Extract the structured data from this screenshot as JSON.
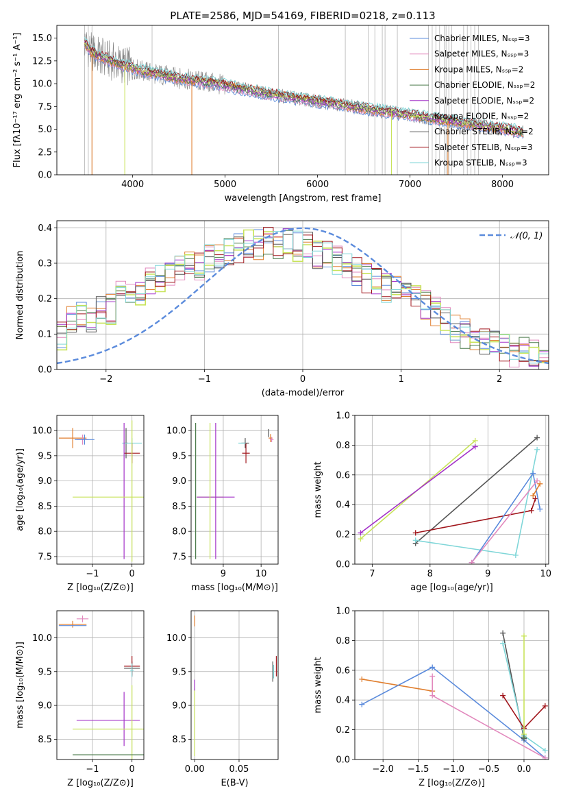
{
  "colors": {
    "chabrier_miles": "#5b8bdc",
    "salpeter_miles": "#e289bd",
    "kroupa_miles": "#e07f2f",
    "chabrier_elodie": "#4a7a4a",
    "salpeter_elodie": "#a330c8",
    "kroupa_elodie": "#c8e35a",
    "chabrier_stelib": "#555555",
    "salpeter_stelib": "#a0151b",
    "kroupa_stelib": "#7fd6d8",
    "spectrum": "#7f7f7f",
    "sky_lines": "#bbbbbb",
    "grid": "#b0b0b0"
  },
  "chart_data": [
    {
      "id": "spectrum",
      "type": "line",
      "title": "PLATE=2586, MJD=54169, FIBERID=0218, z=0.113",
      "xlabel": "wavelength [Angstrom, rest frame]",
      "ylabel": "Flux [fλ10⁻¹⁷ erg cm⁻² s⁻¹ A⁻¹]",
      "xlim": [
        3180,
        8500
      ],
      "ylim": [
        0,
        16.4
      ],
      "xticks": [
        4000,
        5000,
        6000,
        7000,
        8000
      ],
      "yticks": [
        0.0,
        2.5,
        5.0,
        7.5,
        10.0,
        12.5,
        15.0
      ],
      "grid": false,
      "legend_position": "top-right",
      "legend": [
        "Chabrier MILES, Nₛₛₚ=3",
        "Salpeter MILES, Nₛₛₚ=3",
        "Kroupa MILES, Nₛₛₚ=2",
        "Chabrier ELODIE, Nₛₛₚ=2",
        "Salpeter ELODIE, Nₛₛₚ=2",
        "Kroupa ELODIE, Nₛₛₚ=2",
        "Chabrier STELIB, Nₛₛₚ=2",
        "Salpeter STELIB, Nₛₛₚ=3",
        "Kroupa STELIB, Nₛₛₚ=3"
      ],
      "legend_keys": [
        "chabrier_miles",
        "salpeter_miles",
        "kroupa_miles",
        "chabrier_elodie",
        "salpeter_elodie",
        "kroupa_elodie",
        "chabrier_stelib",
        "salpeter_stelib",
        "kroupa_stelib"
      ],
      "data_continuum": {
        "x": [
          3480,
          3550,
          3650,
          3750,
          3850,
          3950,
          4100,
          4300,
          4500,
          4700,
          4900,
          5100,
          5300,
          5500,
          5700,
          5900,
          6100,
          6300,
          6500,
          6700,
          6900,
          7100,
          7300,
          7500,
          7700,
          7900,
          8100,
          8230
        ],
        "y": [
          14.5,
          13.5,
          13.0,
          12.6,
          12.2,
          11.9,
          11.4,
          11.0,
          10.6,
          10.3,
          10.0,
          9.6,
          9.2,
          8.8,
          8.5,
          8.2,
          7.9,
          7.6,
          7.3,
          7.0,
          6.7,
          6.4,
          6.1,
          5.8,
          5.5,
          5.2,
          4.9,
          4.6
        ]
      },
      "sky_lines_x": [
        3480,
        3520,
        3560,
        4210,
        5577,
        6300,
        6548,
        6620,
        6700,
        6730,
        6863,
        7200,
        7240,
        7280,
        7320,
        7370,
        7390,
        7420,
        7450,
        7580,
        7620,
        7660,
        7700,
        7740
      ],
      "model_dips": [
        {
          "series": "kroupa_miles",
          "x": 3560,
          "to": 0
        },
        {
          "series": "kroupa_elodie",
          "x": 3915,
          "to": 0
        },
        {
          "series": "kroupa_miles",
          "x": 4640,
          "to": 0
        },
        {
          "series": "kroupa_elodie",
          "x": 6800,
          "to": 0
        },
        {
          "series": "kroupa_miles",
          "x": 7410,
          "to": 0
        }
      ]
    },
    {
      "id": "residuals",
      "type": "step",
      "xlabel": "(data-model)/error",
      "ylabel": "Normed distribution",
      "xlim": [
        -2.5,
        2.5
      ],
      "ylim": [
        0,
        0.42
      ],
      "xticks": [
        -2,
        -1,
        0,
        1,
        2
      ],
      "yticks": [
        0.0,
        0.1,
        0.2,
        0.3,
        0.4
      ],
      "grid": true,
      "legend_position": "top-right",
      "gaussian": {
        "label": "𝒩(0, 1)",
        "mean": 0,
        "sigma": 1,
        "color": "#5b8bdc"
      },
      "bin_edges_start": -2.5,
      "bin_width": 0.1,
      "envelope": [
        0.09,
        0.15,
        0.15,
        0.15,
        0.17,
        0.17,
        0.21,
        0.21,
        0.22,
        0.25,
        0.25,
        0.27,
        0.29,
        0.3,
        0.29,
        0.31,
        0.32,
        0.33,
        0.34,
        0.36,
        0.35,
        0.36,
        0.35,
        0.36,
        0.35,
        0.36,
        0.33,
        0.32,
        0.31,
        0.3,
        0.28,
        0.26,
        0.25,
        0.23,
        0.22,
        0.21,
        0.2,
        0.18,
        0.16,
        0.14,
        0.12,
        0.1,
        0.09,
        0.08,
        0.07,
        0.06,
        0.05,
        0.05,
        0.04,
        0.03
      ]
    },
    {
      "id": "age_vs_Z",
      "type": "errorbar",
      "xlabel": "Z [log₁₀(Z/Z⊙)]",
      "ylabel": "age  [log₁₀(age/yr)]",
      "xlim": [
        -1.9,
        0.3
      ],
      "ylim": [
        7.35,
        10.3
      ],
      "xticks": [
        -1,
        0
      ],
      "yticks": [
        7.5,
        8.0,
        8.5,
        9.0,
        9.5,
        10.0
      ],
      "grid": true,
      "points": [
        {
          "s": "kroupa_miles",
          "x": -1.5,
          "y": 9.85,
          "xerr": 0.35,
          "yerr": 0.2
        },
        {
          "s": "salpeter_miles",
          "x": -1.25,
          "y": 9.82,
          "xerr": 0.15,
          "yerr": 0.1
        },
        {
          "s": "chabrier_miles",
          "x": -1.2,
          "y": 9.82,
          "xerr": 0.25,
          "yerr": 0.1
        },
        {
          "s": "chabrier_stelib",
          "x": -0.15,
          "y": 9.75,
          "xerr": 0.05,
          "yerr": 0.3
        },
        {
          "s": "kroupa_stelib",
          "x": 0.0,
          "y": 9.75,
          "xerr": 0.25,
          "yerr": 0.1
        },
        {
          "s": "salpeter_stelib",
          "x": 0.0,
          "y": 9.55,
          "xerr": 0.2,
          "yerr": 0.2
        },
        {
          "s": "salpeter_elodie",
          "x": -0.2,
          "y": 8.8,
          "xerr": 0.0,
          "yerr": 1.35
        },
        {
          "s": "kroupa_elodie",
          "x": -0.6,
          "y": 8.68,
          "xerr": 0.9,
          "yerr": 0.0
        },
        {
          "s": "kroupa_elodie",
          "x": 0.0,
          "y": 8.8,
          "xerr": 0.0,
          "yerr": 1.4
        }
      ]
    },
    {
      "id": "age_vs_mass",
      "type": "errorbar",
      "xlabel": "mass [log₁₀(M/M⊙)]",
      "ylabel": "",
      "xlim": [
        8.15,
        10.45
      ],
      "ylim": [
        7.35,
        10.3
      ],
      "xticks": [
        9,
        10
      ],
      "yticks": [
        7.5,
        8.0,
        8.5,
        9.0,
        9.5,
        10.0
      ],
      "grid": true,
      "points": [
        {
          "s": "kroupa_elodie",
          "x": 8.65,
          "y": 8.68,
          "xerr": 0.35,
          "yerr": 0.0
        },
        {
          "s": "salpeter_elodie",
          "x": 8.8,
          "y": 8.68,
          "xerr": 0.5,
          "yerr": 0.0
        },
        {
          "s": "chabrier_elodie",
          "x": 8.27,
          "y": 8.8,
          "xerr": 0.0,
          "yerr": 1.35
        },
        {
          "s": "kroupa_elodie",
          "x": 8.65,
          "y": 8.8,
          "xerr": 0.0,
          "yerr": 1.35
        },
        {
          "s": "salpeter_elodie",
          "x": 8.8,
          "y": 8.8,
          "xerr": 0.0,
          "yerr": 1.35
        },
        {
          "s": "chabrier_stelib",
          "x": 9.58,
          "y": 9.75,
          "xerr": 0.1,
          "yerr": 0.1
        },
        {
          "s": "kroupa_stelib",
          "x": 9.5,
          "y": 9.75,
          "xerr": 0.1,
          "yerr": 0.0
        },
        {
          "s": "salpeter_stelib",
          "x": 9.6,
          "y": 9.55,
          "xerr": 0.1,
          "yerr": 0.2
        },
        {
          "s": "chabrier_stelib",
          "x": 10.2,
          "y": 9.95,
          "xerr": 0.0,
          "yerr": 0.08
        },
        {
          "s": "kroupa_miles",
          "x": 10.25,
          "y": 9.85,
          "xerr": 0.05,
          "yerr": 0.08
        },
        {
          "s": "salpeter_miles",
          "x": 10.28,
          "y": 9.82,
          "xerr": 0.05,
          "yerr": 0.05
        }
      ]
    },
    {
      "id": "weight_vs_age",
      "type": "line",
      "xlabel": "age  [log₁₀(age/yr)]",
      "ylabel": "mass weight",
      "xlim": [
        6.7,
        10.05
      ],
      "ylim": [
        0,
        1.0
      ],
      "xticks": [
        7,
        8,
        9,
        10
      ],
      "yticks": [
        0.0,
        0.2,
        0.4,
        0.6,
        0.8,
        1.0
      ],
      "grid": true,
      "series": [
        {
          "s": "kroupa_elodie",
          "x": [
            6.8,
            8.78
          ],
          "y": [
            0.17,
            0.83
          ]
        },
        {
          "s": "salpeter_elodie",
          "x": [
            6.8,
            8.78
          ],
          "y": [
            0.21,
            0.79
          ]
        },
        {
          "s": "chabrier_stelib",
          "x": [
            7.75,
            9.85
          ],
          "y": [
            0.14,
            0.85
          ]
        },
        {
          "s": "salpeter_stelib",
          "x": [
            7.75,
            9.75,
            9.82
          ],
          "y": [
            0.21,
            0.36,
            0.44
          ]
        },
        {
          "s": "kroupa_stelib",
          "x": [
            7.75,
            9.48,
            9.85
          ],
          "y": [
            0.16,
            0.06,
            0.77
          ]
        },
        {
          "s": "chabrier_miles",
          "x": [
            8.72,
            9.78,
            9.9
          ],
          "y": [
            0.01,
            0.61,
            0.37
          ]
        },
        {
          "s": "salpeter_miles",
          "x": [
            8.72,
            9.85
          ],
          "y": [
            0.01,
            0.56
          ]
        },
        {
          "s": "kroupa_miles",
          "x": [
            9.78,
            9.9
          ],
          "y": [
            0.46,
            0.54
          ]
        }
      ]
    },
    {
      "id": "mass_vs_Z",
      "type": "errorbar",
      "xlabel": "Z [log₁₀(Z/Z⊙)]",
      "ylabel": "mass [log₁₀(M/M⊙)]",
      "xlim": [
        -1.9,
        0.3
      ],
      "ylim": [
        8.2,
        10.4
      ],
      "xticks": [
        -1,
        0
      ],
      "yticks": [
        8.5,
        9.0,
        9.5,
        10.0
      ],
      "grid": true,
      "points": [
        {
          "s": "kroupa_miles",
          "x": -1.5,
          "y": 10.2,
          "xerr": 0.35,
          "yerr": 0.05
        },
        {
          "s": "chabrier_miles",
          "x": -1.5,
          "y": 10.18,
          "xerr": 0.35,
          "yerr": 0.0
        },
        {
          "s": "salpeter_miles",
          "x": -1.25,
          "y": 10.28,
          "xerr": 0.15,
          "yerr": 0.05
        },
        {
          "s": "chabrier_stelib",
          "x": 0.0,
          "y": 9.55,
          "xerr": 0.2,
          "yerr": 0.1
        },
        {
          "s": "salpeter_stelib",
          "x": 0.0,
          "y": 9.58,
          "xerr": 0.2,
          "yerr": 0.15
        },
        {
          "s": "kroupa_stelib",
          "x": 0.0,
          "y": 9.52,
          "xerr": 0.05,
          "yerr": 0.1
        },
        {
          "s": "salpeter_elodie",
          "x": -0.2,
          "y": 8.8,
          "xerr": 0.0,
          "yerr": 0.4
        },
        {
          "s": "salpeter_elodie",
          "x": -0.6,
          "y": 8.78,
          "xerr": 0.8,
          "yerr": 0.0
        },
        {
          "s": "kroupa_elodie",
          "x": -0.6,
          "y": 8.65,
          "xerr": 0.9,
          "yerr": 0.0
        },
        {
          "s": "kroupa_elodie",
          "x": 0.0,
          "y": 8.7,
          "xerr": 0.0,
          "yerr": 0.6
        },
        {
          "s": "chabrier_elodie",
          "x": -0.6,
          "y": 8.27,
          "xerr": 0.9,
          "yerr": 0.0
        }
      ]
    },
    {
      "id": "mass_vs_ebv",
      "type": "errorbar",
      "xlabel": "E(B-V)",
      "ylabel": "",
      "xlim": [
        -0.004,
        0.094
      ],
      "ylim": [
        8.2,
        10.4
      ],
      "xticks": [
        0.0,
        0.05
      ],
      "yticks": [
        8.5,
        9.0,
        9.5,
        10.0
      ],
      "grid": true,
      "points": [
        {
          "s": "kroupa_elodie",
          "x": 0.0,
          "y": 8.75,
          "xerr": 0.0,
          "yerr": 0.5
        },
        {
          "s": "salpeter_elodie",
          "x": 0.0,
          "y": 9.3,
          "xerr": 0.0,
          "yerr": 0.08
        },
        {
          "s": "kroupa_miles",
          "x": 0.0,
          "y": 10.25,
          "xerr": 0.0,
          "yerr": 0.08
        },
        {
          "s": "chabrier_stelib",
          "x": 0.088,
          "y": 9.5,
          "xerr": 0.0,
          "yerr": 0.15
        },
        {
          "s": "kroupa_stelib",
          "x": 0.089,
          "y": 9.5,
          "xerr": 0.0,
          "yerr": 0.1
        },
        {
          "s": "salpeter_stelib",
          "x": 0.092,
          "y": 9.58,
          "xerr": 0.0,
          "yerr": 0.15
        }
      ]
    },
    {
      "id": "weight_vs_Z",
      "type": "line",
      "xlabel": "Z [log₁₀(Z/Z⊙)]",
      "ylabel": "mass weight",
      "xlim": [
        -2.4,
        0.35
      ],
      "ylim": [
        0,
        1.0
      ],
      "xticks": [
        -2.0,
        -1.5,
        -1.0,
        -0.5,
        0.0
      ],
      "yticks": [
        0.0,
        0.2,
        0.4,
        0.6,
        0.8,
        1.0
      ],
      "grid": true,
      "series": [
        {
          "s": "kroupa_miles",
          "x": [
            -2.3,
            -1.3
          ],
          "y": [
            0.54,
            0.46
          ]
        },
        {
          "s": "chabrier_miles",
          "x": [
            -2.3,
            -1.3,
            0.0,
            0.3
          ],
          "y": [
            0.37,
            0.62,
            0.13,
            0.01
          ]
        },
        {
          "s": "salpeter_miles",
          "x": [
            -1.3,
            -1.3,
            0.3
          ],
          "y": [
            0.56,
            0.43,
            0.01
          ]
        },
        {
          "s": "chabrier_stelib",
          "x": [
            -0.3,
            0.0
          ],
          "y": [
            0.85,
            0.14
          ]
        },
        {
          "s": "kroupa_stelib",
          "x": [
            -0.3,
            0.0,
            0.3
          ],
          "y": [
            0.78,
            0.16,
            0.06
          ]
        },
        {
          "s": "salpeter_stelib",
          "x": [
            -0.3,
            0.0,
            0.3
          ],
          "y": [
            0.43,
            0.21,
            0.36
          ]
        },
        {
          "s": "kroupa_elodie",
          "x": [
            0.0,
            0.0
          ],
          "y": [
            0.83,
            0.17
          ]
        },
        {
          "s": "chabrier_elodie",
          "x": [
            0.0
          ],
          "y": [
            0.15
          ]
        }
      ]
    }
  ]
}
